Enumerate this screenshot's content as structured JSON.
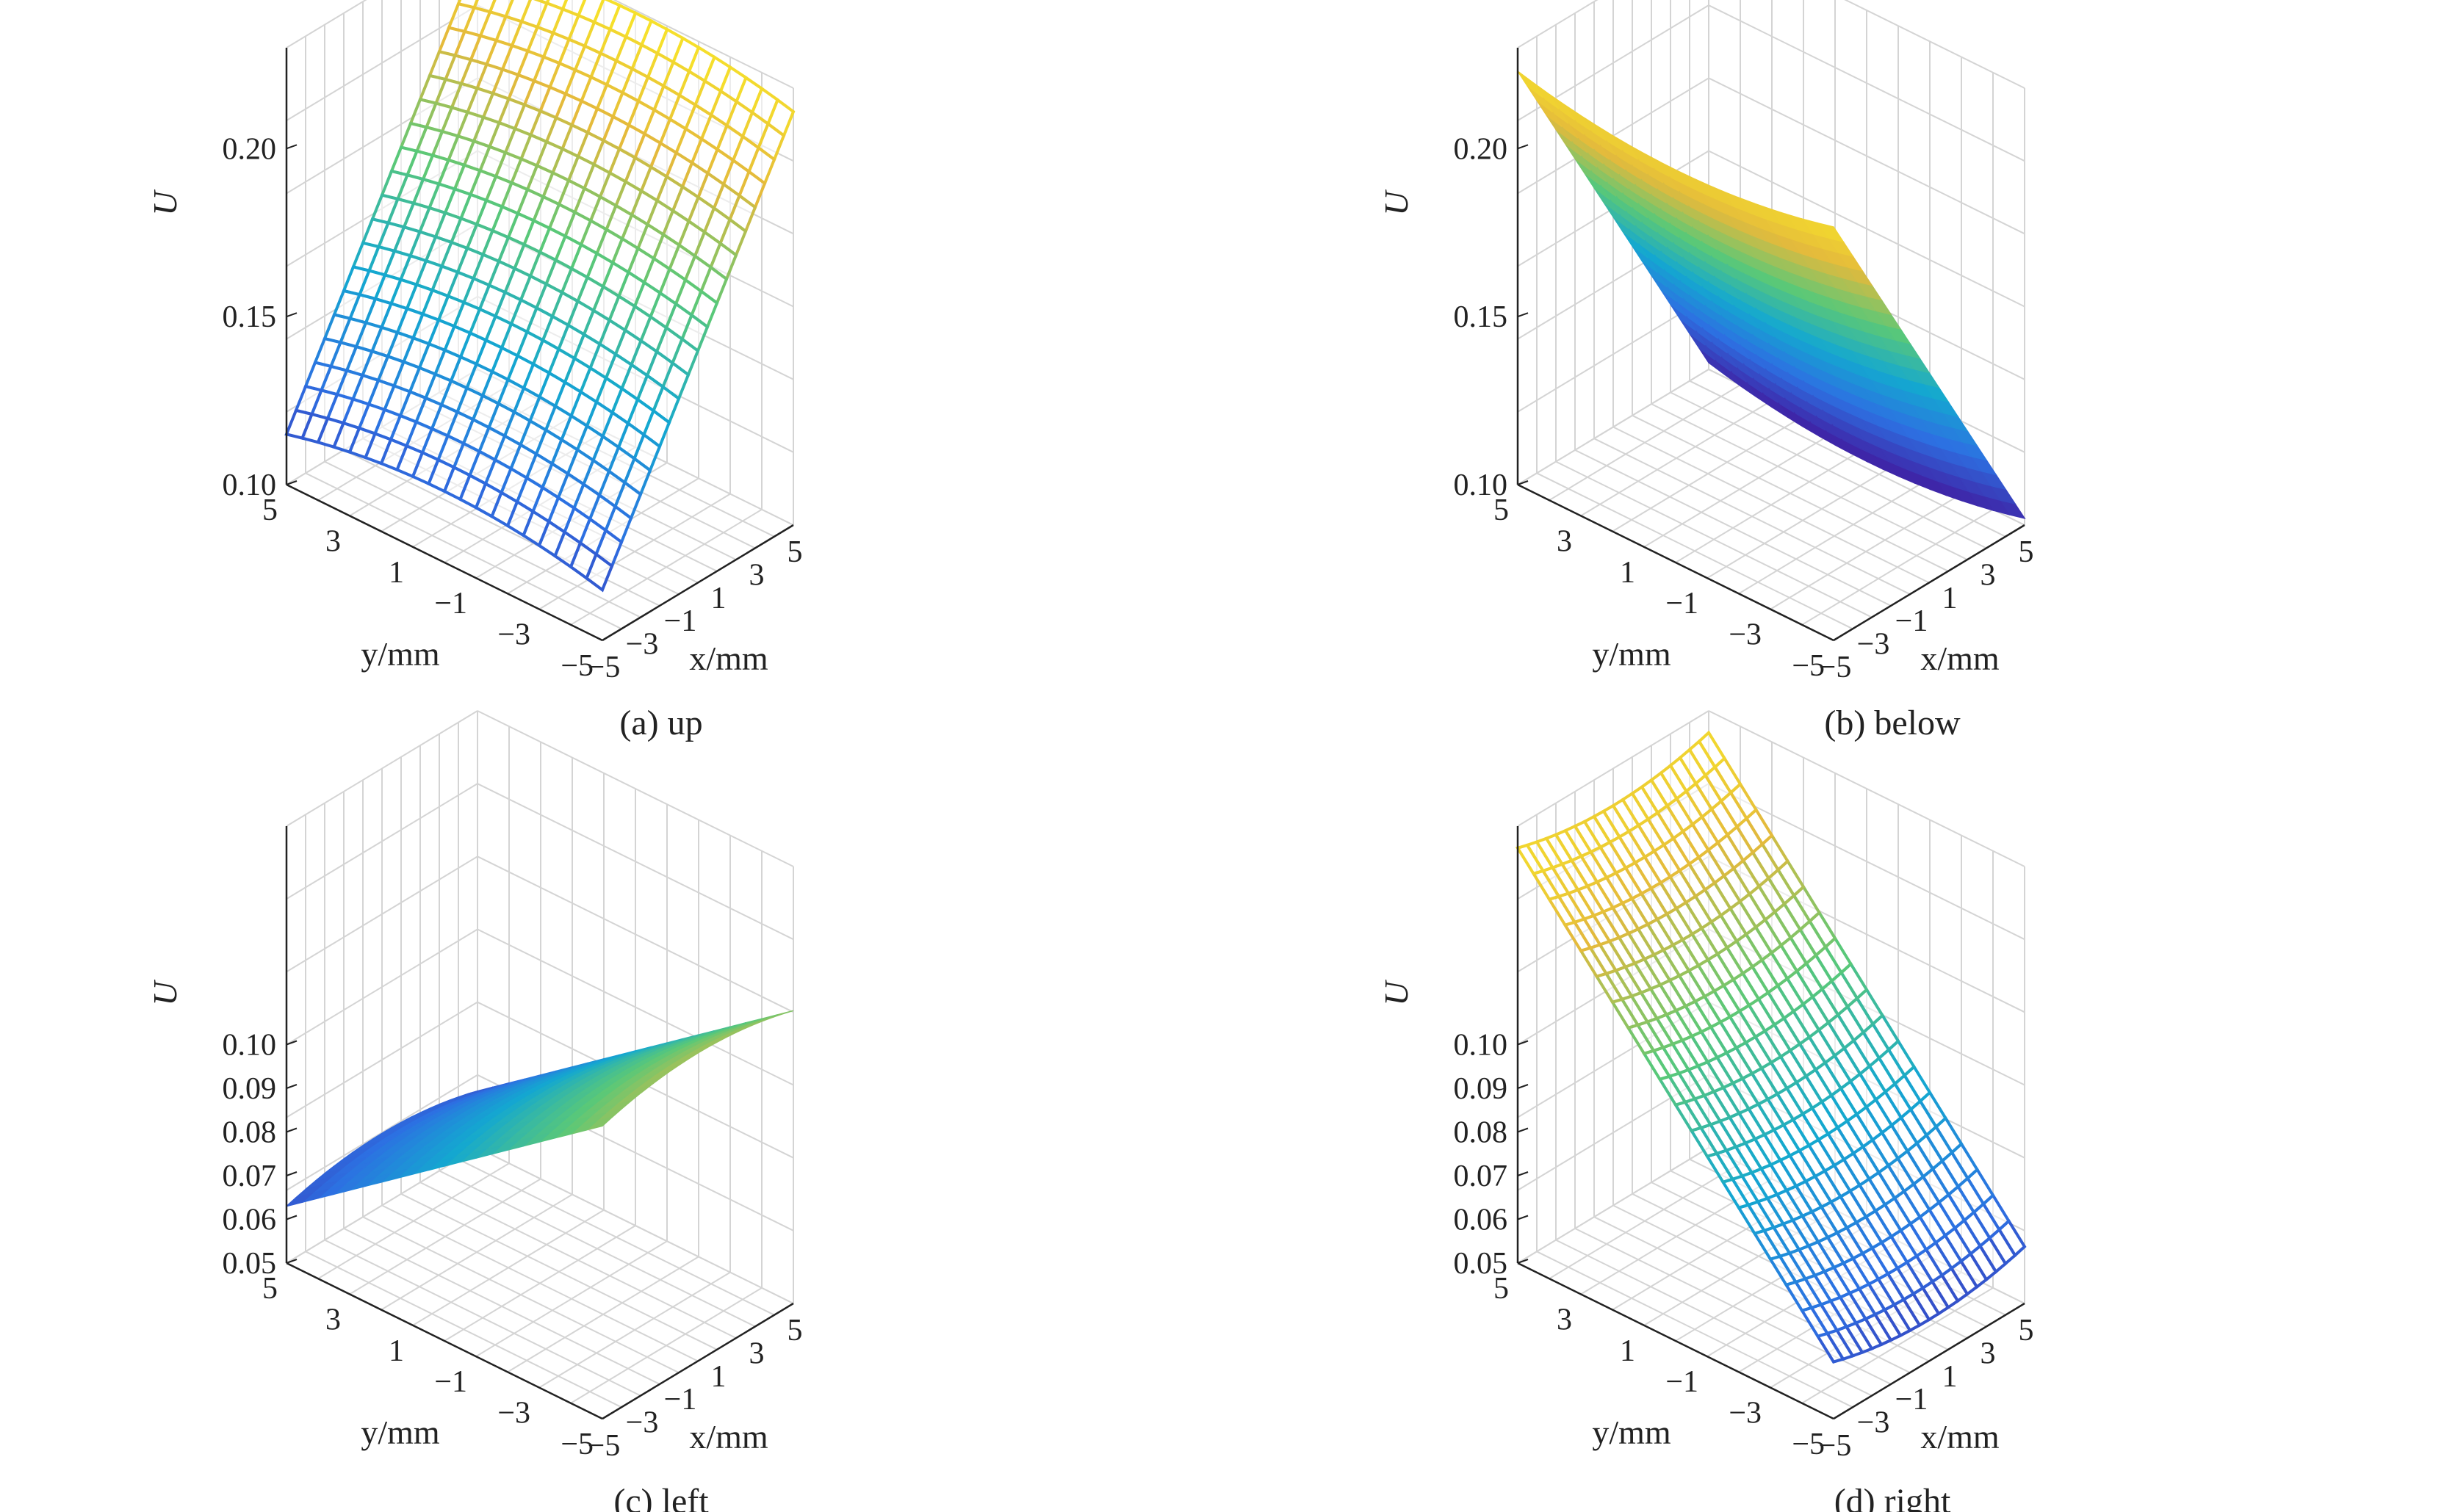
{
  "chart_data": [
    {
      "type": "surface",
      "caption": "(a) up",
      "xlabel": "x/mm",
      "ylabel": "y/mm",
      "zlabel": "U",
      "xlim": [
        -5,
        5
      ],
      "ylim": [
        -5,
        5
      ],
      "zlim": [
        0.1,
        0.23
      ],
      "xticks": [
        "−5",
        "−3",
        "−1",
        "1",
        "3",
        "5"
      ],
      "yticks": [
        "5",
        "3",
        "1",
        "−1",
        "−3",
        "−5"
      ],
      "zticks": [
        "0.10",
        "0.15",
        "0.20"
      ],
      "grid": true,
      "colormap": "parula",
      "mesh": "wire",
      "surface": {
        "U_x_min": 0.115,
        "U_x_max": 0.223,
        "curvature": 0.0062
      }
    },
    {
      "type": "surface",
      "caption": "(b) below",
      "xlabel": "x/mm",
      "ylabel": "y/mm",
      "zlabel": "U",
      "xlim": [
        -5,
        5
      ],
      "ylim": [
        -5,
        5
      ],
      "zlim": [
        0.1,
        0.23
      ],
      "xticks": [
        "−5",
        "−3",
        "−1",
        "1",
        "3",
        "5"
      ],
      "yticks": [
        "5",
        "3",
        "1",
        "−1",
        "−3",
        "−5"
      ],
      "zticks": [
        "0.10",
        "0.15",
        "0.20"
      ],
      "grid": true,
      "colormap": "parula",
      "mesh": "filled",
      "surface": {
        "U_x_min": 0.223,
        "U_x_max": 0.102,
        "curvature": -0.0062
      }
    },
    {
      "type": "surface",
      "caption": "(c) left",
      "xlabel": "x/mm",
      "ylabel": "y/mm",
      "zlabel": "U",
      "xlim": [
        -5,
        5
      ],
      "ylim": [
        -5,
        5
      ],
      "zlim": [
        0.05,
        0.15
      ],
      "xticks": [
        "−5",
        "−3",
        "−1",
        "1",
        "3",
        "5"
      ],
      "yticks": [
        "5",
        "3",
        "1",
        "−1",
        "−3",
        "−5"
      ],
      "zticks": [
        "0.05",
        "0.06",
        "0.07",
        "0.08",
        "0.09",
        "0.10"
      ],
      "grid": true,
      "colormap": "parula",
      "mesh": "filled",
      "surface": {
        "U_y_min": 0.117,
        "U_y_max": 0.063,
        "curvature": 0.0035
      }
    },
    {
      "type": "surface",
      "caption": "(d) right",
      "xlabel": "x/mm",
      "ylabel": "y/mm",
      "zlabel": "U",
      "xlim": [
        -5,
        5
      ],
      "ylim": [
        -5,
        5
      ],
      "zlim": [
        0.05,
        0.15
      ],
      "xticks": [
        "−5",
        "−3",
        "−1",
        "1",
        "3",
        "5"
      ],
      "yticks": [
        "5",
        "3",
        "1",
        "−1",
        "−3",
        "−5"
      ],
      "zticks": [
        "0.05",
        "0.06",
        "0.07",
        "0.08",
        "0.09",
        "0.10"
      ],
      "grid": true,
      "colormap": "parula",
      "mesh": "wire",
      "surface": {
        "U_y_min": 0.063,
        "U_y_max": 0.145,
        "curvature": -0.0035
      }
    }
  ]
}
